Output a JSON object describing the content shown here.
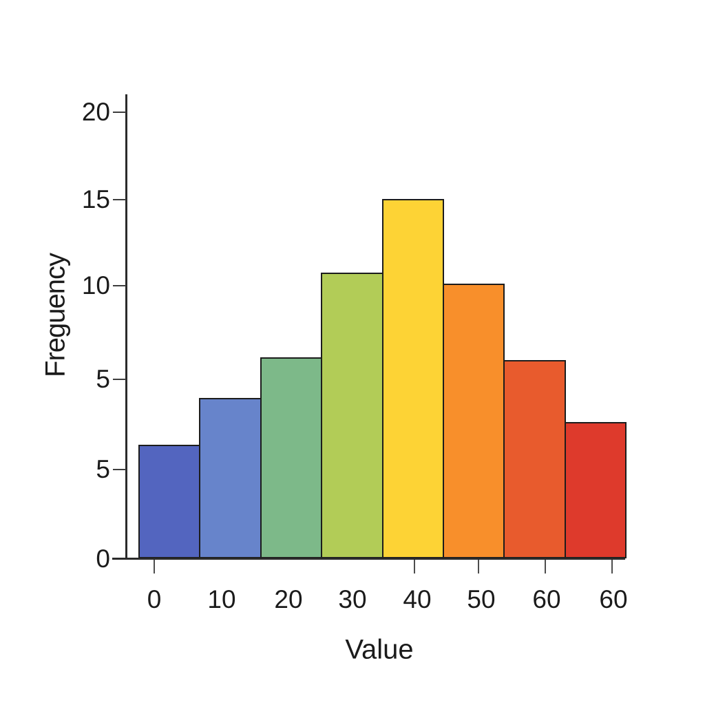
{
  "figure": {
    "background": "#ffffff",
    "text_color": "#1b1b1b",
    "axis_color": "#2b2b2b"
  },
  "chart_data": {
    "type": "bar",
    "title": "",
    "xlabel": "Value",
    "ylabel": "Freguency",
    "categories": [
      "0",
      "10",
      "20",
      "30",
      "40",
      "50",
      "60",
      "60"
    ],
    "values": [
      5.1,
      7.2,
      9.0,
      12.8,
      16.1,
      12.3,
      8.9,
      6.1
    ],
    "bar_colors": [
      "#5365bf",
      "#6784cb",
      "#7db989",
      "#b2cc57",
      "#fdd335",
      "#f88f2b",
      "#e85b2d",
      "#de3a2c"
    ],
    "bar_edge_color": "#1c1c1c",
    "x_tick_labels": [
      "0",
      "10",
      "20",
      "30",
      "40",
      "50",
      "60",
      "60"
    ],
    "x_tick_marks_shown_for": [
      "0",
      "40",
      "50",
      "60",
      "60"
    ],
    "y_tick_labels": [
      "20",
      "15",
      "10",
      "5",
      "5",
      "0"
    ],
    "ylim": [
      0,
      20
    ],
    "grid": false,
    "legend": null
  }
}
